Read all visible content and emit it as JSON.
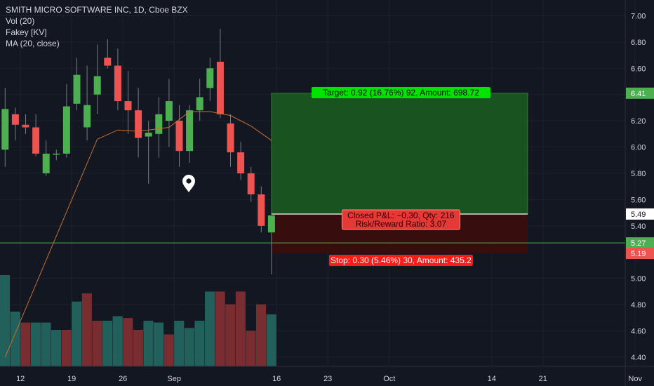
{
  "legend": {
    "title": "SMITH MICRO SOFTWARE INC, 1D, Cboe BZX",
    "vol": "Vol (20)",
    "fakey": "Fakey [KV]",
    "ma": "MA (20, close)"
  },
  "colors": {
    "background": "#131722",
    "grid": "#1e222d",
    "up": "#4caf50",
    "down": "#ef5350",
    "vol_up": "#22605c",
    "vol_down": "#7a2d31",
    "ma": "#c8702f",
    "axis_text": "#d1d4dc",
    "target_zone": "#1b5e20",
    "stop_zone": "#3a0d0d",
    "target_label": "#00e400",
    "stop_label": "#ff1a1a",
    "line_527": "#4caf50"
  },
  "chart_data": {
    "type": "candlestick",
    "price_axis": {
      "ylim": [
        4.33,
        7.12
      ],
      "ticks": [
        "7.00",
        "6.80",
        "6.60",
        "6.40",
        "6.20",
        "6.00",
        "5.80",
        "5.60",
        "5.40",
        "5.00",
        "4.80",
        "4.60",
        "4.40"
      ],
      "tick_values": [
        7.0,
        6.8,
        6.6,
        6.4,
        6.2,
        6.0,
        5.8,
        5.6,
        5.4,
        5.0,
        4.8,
        4.6,
        4.4
      ],
      "price_labels": [
        {
          "text": "6.41",
          "value": 6.41,
          "color": "#4caf50"
        },
        {
          "text": "5.49",
          "value": 5.49,
          "color": "#ffffff"
        },
        {
          "text": "5.27",
          "value": 5.27,
          "color": "#4caf50"
        },
        {
          "text": "5.19",
          "value": 5.19,
          "color": "#ef5350"
        }
      ]
    },
    "x_axis": {
      "labels": [
        "12",
        "19",
        "26",
        "Sep",
        "16",
        "23",
        "Oct",
        "14",
        "21",
        "Nov"
      ],
      "label_bar_index": [
        2,
        7,
        12,
        17,
        27,
        32,
        38,
        48,
        53,
        62
      ]
    },
    "candles": [
      {
        "o": 5.98,
        "h": 6.45,
        "l": 5.85,
        "c": 6.29
      },
      {
        "o": 6.25,
        "h": 6.3,
        "l": 6.05,
        "c": 6.17
      },
      {
        "o": 6.17,
        "h": 6.25,
        "l": 6.1,
        "c": 6.15
      },
      {
        "o": 6.15,
        "h": 6.25,
        "l": 5.93,
        "c": 5.95
      },
      {
        "o": 5.8,
        "h": 6.05,
        "l": 5.78,
        "c": 5.95
      },
      {
        "o": 5.95,
        "h": 5.98,
        "l": 5.9,
        "c": 5.95
      },
      {
        "o": 5.95,
        "h": 6.48,
        "l": 5.92,
        "c": 6.31
      },
      {
        "o": 6.33,
        "h": 6.68,
        "l": 6.28,
        "c": 6.55
      },
      {
        "o": 6.15,
        "h": 6.62,
        "l": 6.05,
        "c": 6.32
      },
      {
        "o": 6.4,
        "h": 6.78,
        "l": 6.25,
        "c": 6.54
      },
      {
        "o": 6.68,
        "h": 6.82,
        "l": 6.6,
        "c": 6.62
      },
      {
        "o": 6.62,
        "h": 6.75,
        "l": 6.28,
        "c": 6.35
      },
      {
        "o": 6.35,
        "h": 6.58,
        "l": 6.1,
        "c": 6.28
      },
      {
        "o": 6.28,
        "h": 6.45,
        "l": 5.92,
        "c": 6.07
      },
      {
        "o": 6.08,
        "h": 6.2,
        "l": 5.72,
        "c": 6.11
      },
      {
        "o": 6.1,
        "h": 6.38,
        "l": 5.92,
        "c": 6.25
      },
      {
        "o": 6.2,
        "h": 6.52,
        "l": 6.0,
        "c": 6.35
      },
      {
        "o": 6.2,
        "h": 6.32,
        "l": 5.85,
        "c": 5.97
      },
      {
        "o": 5.97,
        "h": 6.32,
        "l": 5.88,
        "c": 6.28
      },
      {
        "o": 6.28,
        "h": 6.52,
        "l": 6.2,
        "c": 6.38
      },
      {
        "o": 6.45,
        "h": 6.68,
        "l": 6.35,
        "c": 6.6
      },
      {
        "o": 6.65,
        "h": 6.9,
        "l": 6.22,
        "c": 6.25
      },
      {
        "o": 6.18,
        "h": 6.25,
        "l": 5.85,
        "c": 5.96
      },
      {
        "o": 5.96,
        "h": 6.04,
        "l": 5.75,
        "c": 5.8
      },
      {
        "o": 5.8,
        "h": 5.85,
        "l": 5.58,
        "c": 5.64
      },
      {
        "o": 5.64,
        "h": 5.7,
        "l": 5.35,
        "c": 5.4
      },
      {
        "o": 5.35,
        "h": 5.48,
        "l": 5.03,
        "c": 5.48
      }
    ],
    "ma_line": [
      {
        "bar": 0.5,
        "value": 4.4
      },
      {
        "bar": 9.5,
        "value": 6.06
      },
      {
        "bar": 11.5,
        "value": 6.13
      },
      {
        "bar": 13.5,
        "value": 6.12
      },
      {
        "bar": 16.5,
        "value": 6.15
      },
      {
        "bar": 18.5,
        "value": 6.27
      },
      {
        "bar": 20.5,
        "value": 6.27
      },
      {
        "bar": 22.5,
        "value": 6.24
      },
      {
        "bar": 24.5,
        "value": 6.16
      },
      {
        "bar": 26.5,
        "value": 6.05
      }
    ],
    "volume": {
      "ylim": [
        0,
        1
      ],
      "values": [
        1.0,
        0.6,
        0.48,
        0.48,
        0.48,
        0.4,
        0.4,
        0.71,
        0.8,
        0.5,
        0.5,
        0.55,
        0.53,
        0.4,
        0.5,
        0.48,
        0.35,
        0.5,
        0.42,
        0.5,
        0.82,
        0.82,
        0.68,
        0.82,
        0.39,
        0.68,
        0.57
      ],
      "up": [
        true,
        true,
        false,
        true,
        true,
        true,
        false,
        true,
        false,
        false,
        true,
        true,
        false,
        false,
        true,
        true,
        false,
        true,
        true,
        true,
        true,
        false,
        false,
        false,
        false,
        false,
        true
      ]
    },
    "position": {
      "entry": 5.49,
      "target": 6.41,
      "stop": 5.19,
      "start_bar": 26.5,
      "end_bar": 51.5,
      "target_label": "Target: 0.92 (16.76%) 92, Amount: 698.72",
      "stop_label": "Stop: 0.30 (5.46%) 30, Amount: 435.2",
      "pnl_label": "Closed P&L: −0.30, Qty: 216",
      "rr_label": "Risk/Reward Ratio: 3.07"
    },
    "horizontal_line": {
      "value": 5.27
    }
  }
}
